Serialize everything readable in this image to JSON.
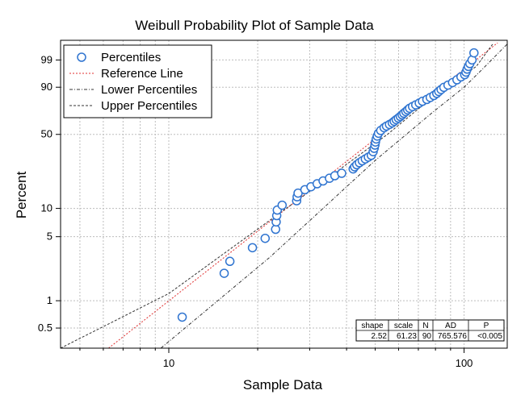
{
  "chart_data": {
    "type": "scatter",
    "title": "Weibull Probability Plot of Sample Data",
    "xlabel": "Sample Data",
    "ylabel": "Percent",
    "x_scale": "log",
    "y_scale": "weibull",
    "xlim": [
      4.3,
      140
    ],
    "ylim": [
      0.3,
      99.95
    ],
    "x_ticks": [
      10,
      100
    ],
    "y_ticks": [
      0.5,
      1,
      5,
      10,
      50,
      90,
      99
    ],
    "grid": true,
    "legend_position": "top-left",
    "legend": [
      {
        "label": "Percentiles",
        "style": "marker",
        "color": "#2f74d0"
      },
      {
        "label": "Reference Line",
        "style": "dotted",
        "color": "#e03030"
      },
      {
        "label": "Lower Percentiles",
        "style": "dashdot",
        "color": "#333333"
      },
      {
        "label": "Upper Percentiles",
        "style": "dashed",
        "color": "#333333"
      }
    ],
    "percentiles": {
      "x": [
        11.1,
        15.4,
        16.1,
        19.2,
        21.2,
        23.0,
        23.1,
        23.2,
        23.3,
        24.2,
        27.1,
        27.2,
        27.4,
        28.9,
        30.3,
        31.8,
        33.3,
        35.0,
        36.5,
        38.5,
        42.1,
        42.6,
        43.3,
        44.2,
        45.2,
        46.3,
        47.4,
        48.5,
        49.2,
        49.6,
        49.9,
        50.1,
        50.4,
        50.8,
        51.3,
        52.2,
        53.6,
        54.6,
        55.9,
        57.1,
        58.0,
        58.9,
        59.9,
        60.8,
        61.7,
        62.5,
        63.5,
        64.4,
        65.4,
        66.9,
        68.6,
        70.5,
        72.3,
        74.8,
        76.8,
        79.0,
        80.8,
        82.1,
        83.6,
        85.4,
        88.2,
        91.4,
        94.6,
        97.6,
        100.5,
        101.5,
        102.4,
        103.4,
        104.6,
        106.4,
        108.0
      ],
      "y": [
        0.66,
        2.0,
        2.7,
        3.8,
        4.8,
        6.0,
        7.2,
        8.4,
        9.6,
        10.8,
        12.0,
        13.2,
        14.4,
        15.6,
        16.7,
        17.9,
        19.1,
        20.3,
        21.5,
        22.7,
        25.0,
        26.2,
        27.4,
        28.6,
        29.8,
        31.0,
        32.2,
        33.4,
        36.0,
        38.5,
        41.0,
        43.5,
        46.0,
        48.5,
        51.0,
        53.5,
        56.0,
        57.5,
        59.0,
        60.5,
        62.0,
        63.5,
        65.0,
        66.5,
        68.0,
        69.5,
        71.0,
        72.5,
        74.0,
        75.5,
        77.0,
        78.5,
        80.0,
        81.5,
        83.0,
        84.5,
        86.0,
        87.3,
        88.6,
        89.9,
        91.2,
        92.5,
        93.8,
        95.0,
        95.8,
        96.6,
        97.4,
        98.0,
        98.5,
        99.0,
        99.6
      ]
    },
    "reference_line": {
      "x": [
        6.25,
        130
      ],
      "y": [
        0.3,
        99.92
      ]
    },
    "lower_percentiles": {
      "x": [
        9.4,
        22.0,
        50.0,
        78.0,
        100.0,
        114.0,
        140.0
      ],
      "y": [
        0.3,
        3.0,
        30.0,
        70.0,
        90.0,
        97.0,
        99.9
      ]
    },
    "upper_percentiles": {
      "x": [
        4.3,
        10.0,
        30.0,
        55.0,
        80.0,
        110.0,
        125.0
      ],
      "y": [
        0.3,
        1.2,
        15.0,
        50.0,
        85.0,
        98.0,
        99.9
      ]
    },
    "stats_table": {
      "headers": [
        "shape",
        "scale",
        "N",
        "AD",
        "P"
      ],
      "values": [
        "2.52",
        "61.23",
        "90",
        "765.576",
        "<0.005"
      ]
    }
  }
}
